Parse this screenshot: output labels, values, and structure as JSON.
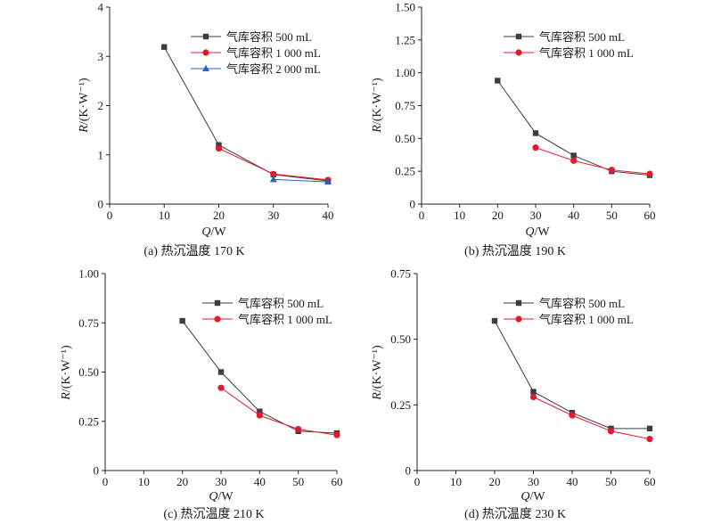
{
  "figure": {
    "panels": [
      {
        "caption": "(a) 热沉温度 170 K",
        "xlabel_main": "Q",
        "xlabel_unit": "/W",
        "ylabel_main": "R",
        "ylabel_unit": "/(K·W⁻¹)"
      },
      {
        "caption": "(b) 热沉温度 190 K",
        "xlabel_main": "Q",
        "xlabel_unit": "/W",
        "ylabel_main": "R",
        "ylabel_unit": "/(K·W⁻¹)"
      },
      {
        "caption": "(c) 热沉温度 210 K",
        "xlabel_main": "Q",
        "xlabel_unit": "/W",
        "ylabel_main": "R",
        "ylabel_unit": "/(K·W⁻¹)"
      },
      {
        "caption": "(d) 热沉温度 230 K",
        "xlabel_main": "Q",
        "xlabel_unit": "/W",
        "ylabel_main": "R",
        "ylabel_unit": "/(K·W⁻¹)"
      }
    ]
  },
  "chart_data": [
    {
      "type": "line",
      "title": "(a) 热沉温度 170 K",
      "xlabel": "Q/W",
      "ylabel": "R/(K·W⁻¹)",
      "xlim": [
        0,
        40
      ],
      "ylim": [
        0,
        4
      ],
      "xticks": [
        0,
        10,
        20,
        30,
        40
      ],
      "yticks": [
        0,
        1,
        2,
        3,
        4
      ],
      "ytick_labels": [
        "0",
        "1",
        "2",
        "3",
        "4"
      ],
      "legend_position": "top-right",
      "series": [
        {
          "name": "气库容积 500 mL",
          "marker": "square",
          "color": "#3d3d3d",
          "x": [
            10,
            20,
            30,
            40
          ],
          "y": [
            3.19,
            1.2,
            0.6,
            0.47
          ]
        },
        {
          "name": "气库容积 1 000 mL",
          "marker": "circle",
          "color": "#e5192d",
          "x": [
            20,
            30,
            40
          ],
          "y": [
            1.13,
            0.61,
            0.49
          ]
        },
        {
          "name": "气库容积 2 000 mL",
          "marker": "triangle",
          "color": "#2a5fc9",
          "x": [
            30,
            40
          ],
          "y": [
            0.5,
            0.45
          ]
        }
      ]
    },
    {
      "type": "line",
      "title": "(b) 热沉温度 190 K",
      "xlabel": "Q/W",
      "ylabel": "R/(K·W⁻¹)",
      "xlim": [
        0,
        60
      ],
      "ylim": [
        0,
        1.5
      ],
      "xticks": [
        0,
        10,
        20,
        30,
        40,
        50,
        60
      ],
      "yticks": [
        0,
        0.25,
        0.5,
        0.75,
        1.0,
        1.25,
        1.5
      ],
      "ytick_labels": [
        "0",
        "0.25",
        "0.50",
        "0.75",
        "1.00",
        "1.25",
        "1.50"
      ],
      "legend_position": "top-right",
      "series": [
        {
          "name": "气库容积 500 mL",
          "marker": "square",
          "color": "#3d3d3d",
          "x": [
            20,
            30,
            40,
            50,
            60
          ],
          "y": [
            0.94,
            0.54,
            0.37,
            0.25,
            0.22
          ]
        },
        {
          "name": "气库容积 1 000 mL",
          "marker": "circle",
          "color": "#e5192d",
          "x": [
            30,
            40,
            50,
            60
          ],
          "y": [
            0.43,
            0.33,
            0.26,
            0.23
          ]
        }
      ]
    },
    {
      "type": "line",
      "title": "(c) 热沉温度 210 K",
      "xlabel": "Q/W",
      "ylabel": "R/(K·W⁻¹)",
      "xlim": [
        0,
        60
      ],
      "ylim": [
        0,
        1.0
      ],
      "xticks": [
        0,
        10,
        20,
        30,
        40,
        50,
        60
      ],
      "yticks": [
        0,
        0.25,
        0.5,
        0.75,
        1.0
      ],
      "ytick_labels": [
        "0",
        "0.25",
        "0.50",
        "0.75",
        "1.00"
      ],
      "legend_position": "top-right",
      "series": [
        {
          "name": "气库容积 500 mL",
          "marker": "square",
          "color": "#3d3d3d",
          "x": [
            20,
            30,
            40,
            50,
            60
          ],
          "y": [
            0.76,
            0.5,
            0.3,
            0.2,
            0.19
          ]
        },
        {
          "name": "气库容积 1 000 mL",
          "marker": "circle",
          "color": "#e5192d",
          "x": [
            30,
            40,
            50,
            60
          ],
          "y": [
            0.42,
            0.28,
            0.21,
            0.18
          ]
        }
      ]
    },
    {
      "type": "line",
      "title": "(d) 热沉温度 230 K",
      "xlabel": "Q/W",
      "ylabel": "R/(K·W⁻¹)",
      "xlim": [
        0,
        60
      ],
      "ylim": [
        0,
        0.75
      ],
      "xticks": [
        0,
        10,
        20,
        30,
        40,
        50,
        60
      ],
      "yticks": [
        0,
        0.25,
        0.5,
        0.75
      ],
      "ytick_labels": [
        "0",
        "0.25",
        "0.50",
        "0.75"
      ],
      "legend_position": "top-right",
      "series": [
        {
          "name": "气库容积 500 mL",
          "marker": "square",
          "color": "#3d3d3d",
          "x": [
            20,
            30,
            40,
            50,
            60
          ],
          "y": [
            0.57,
            0.3,
            0.22,
            0.16,
            0.16
          ]
        },
        {
          "name": "气库容积 1 000 mL",
          "marker": "circle",
          "color": "#e5192d",
          "x": [
            30,
            40,
            50,
            60
          ],
          "y": [
            0.28,
            0.21,
            0.15,
            0.12
          ]
        }
      ]
    }
  ]
}
